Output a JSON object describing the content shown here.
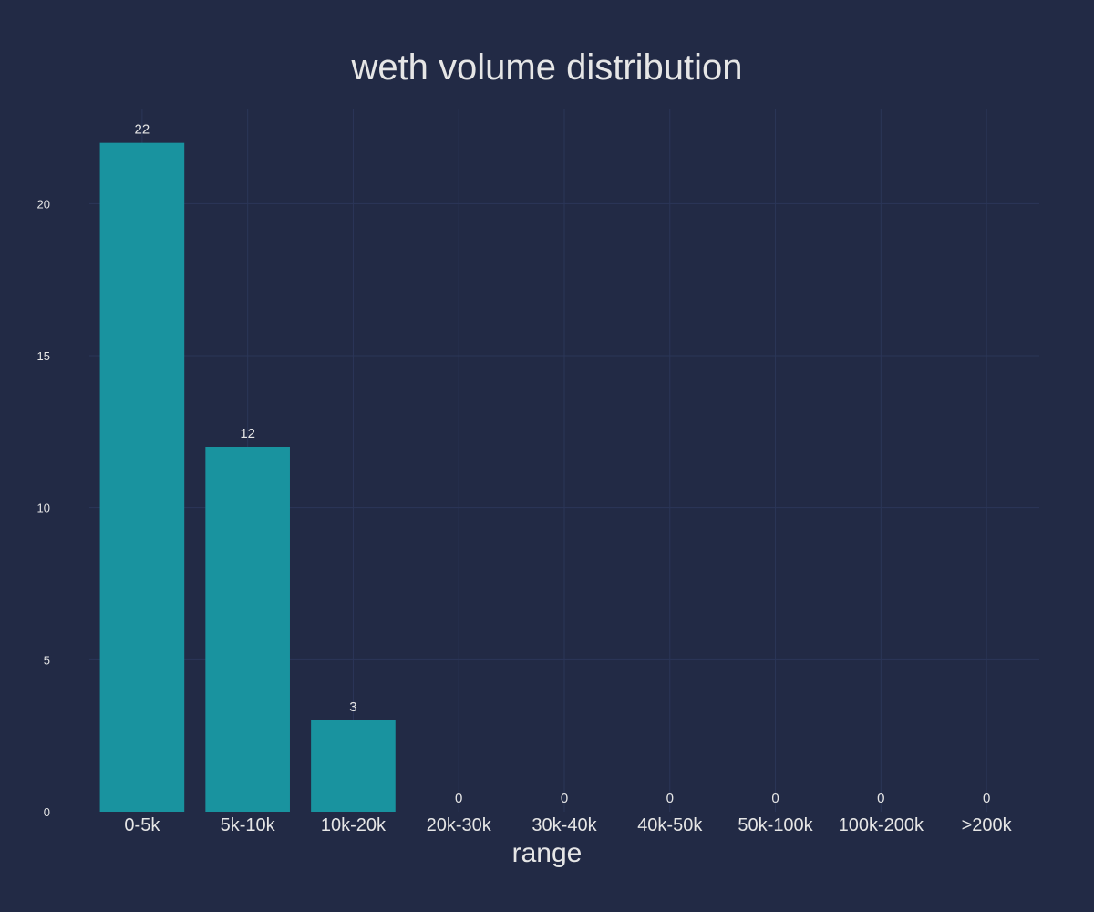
{
  "colors": {
    "background": "#222a45",
    "bar": "#19939f",
    "text": "#e6e6e6",
    "grid": "#2b3658"
  },
  "chart_data": {
    "type": "bar",
    "title": "weth volume distribution",
    "xlabel": "range",
    "ylabel": "",
    "categories": [
      "0-5k",
      "5k-10k",
      "10k-20k",
      "20k-30k",
      "30k-40k",
      "40k-50k",
      "50k-100k",
      "100k-200k",
      ">200k"
    ],
    "values": [
      22,
      12,
      3,
      0,
      0,
      0,
      0,
      0,
      0
    ],
    "data_labels": [
      "22",
      "12",
      "3",
      "0",
      "0",
      "0",
      "0",
      "0",
      "0"
    ],
    "ylim": [
      0,
      23.1
    ],
    "yticks": [
      0,
      5,
      10,
      15,
      20
    ],
    "grid": true,
    "legend": "none"
  }
}
